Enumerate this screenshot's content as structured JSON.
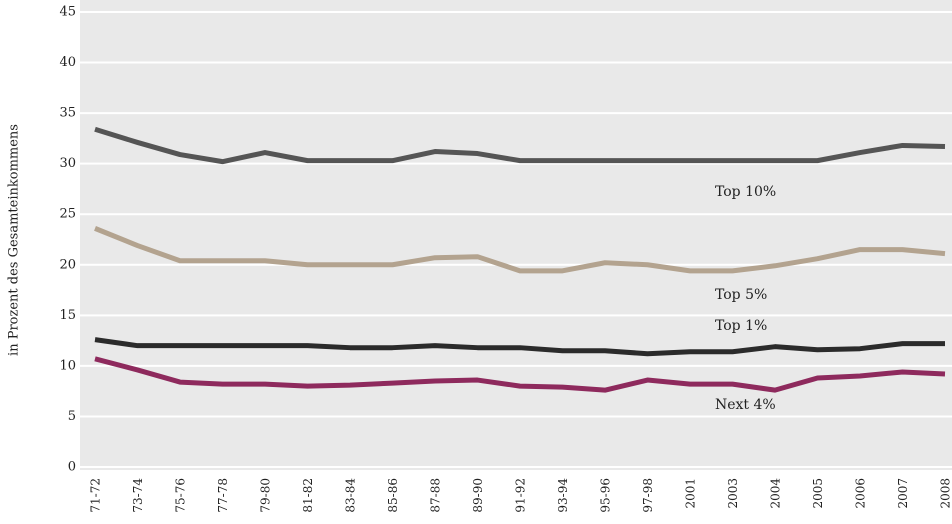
{
  "chart_data": {
    "type": "line",
    "y_axis_label": "in Prozent des Gesamteinkommens",
    "categories": [
      "71-72",
      "73-74",
      "75-76",
      "77-78",
      "79-80",
      "81-82",
      "83-84",
      "85-86",
      "87-88",
      "89-90",
      "91-92",
      "93-94",
      "95-96",
      "97-98",
      "2001",
      "2003",
      "2004",
      "2005",
      "2006",
      "2007",
      "2008"
    ],
    "series": [
      {
        "name": "Top 10%",
        "color": "#555555",
        "values": [
          33.4,
          32.1,
          30.9,
          30.2,
          31.1,
          30.3,
          30.3,
          30.3,
          31.2,
          31.0,
          30.3,
          30.3,
          30.3,
          30.3,
          30.3,
          30.3,
          30.3,
          30.3,
          31.1,
          31.8,
          31.7
        ]
      },
      {
        "name": "Top 5%",
        "color": "#b3a38f",
        "values": [
          23.6,
          21.9,
          20.4,
          20.4,
          20.4,
          20.0,
          20.0,
          20.0,
          20.7,
          20.8,
          19.4,
          19.4,
          20.2,
          20.0,
          19.4,
          19.4,
          19.9,
          20.6,
          21.5,
          21.5,
          21.1
        ]
      },
      {
        "name": "Top 1%",
        "color": "#2b2b2b",
        "values": [
          12.6,
          12.0,
          12.0,
          12.0,
          12.0,
          12.0,
          11.8,
          11.8,
          12.0,
          11.8,
          11.8,
          11.5,
          11.5,
          11.2,
          11.4,
          11.4,
          11.9,
          11.6,
          11.7,
          12.2,
          12.2
        ]
      },
      {
        "name": "Next 4%",
        "color": "#8e2a5d",
        "values": [
          10.7,
          9.6,
          8.4,
          8.2,
          8.2,
          8.0,
          8.1,
          8.3,
          8.5,
          8.6,
          8.0,
          7.9,
          7.6,
          8.6,
          8.2,
          8.2,
          7.6,
          8.8,
          9.0,
          9.4,
          9.2
        ]
      }
    ],
    "ylim": [
      0,
      45
    ],
    "yticks": [
      0,
      5,
      10,
      15,
      20,
      25,
      30,
      35,
      40,
      45
    ],
    "grid": true
  }
}
